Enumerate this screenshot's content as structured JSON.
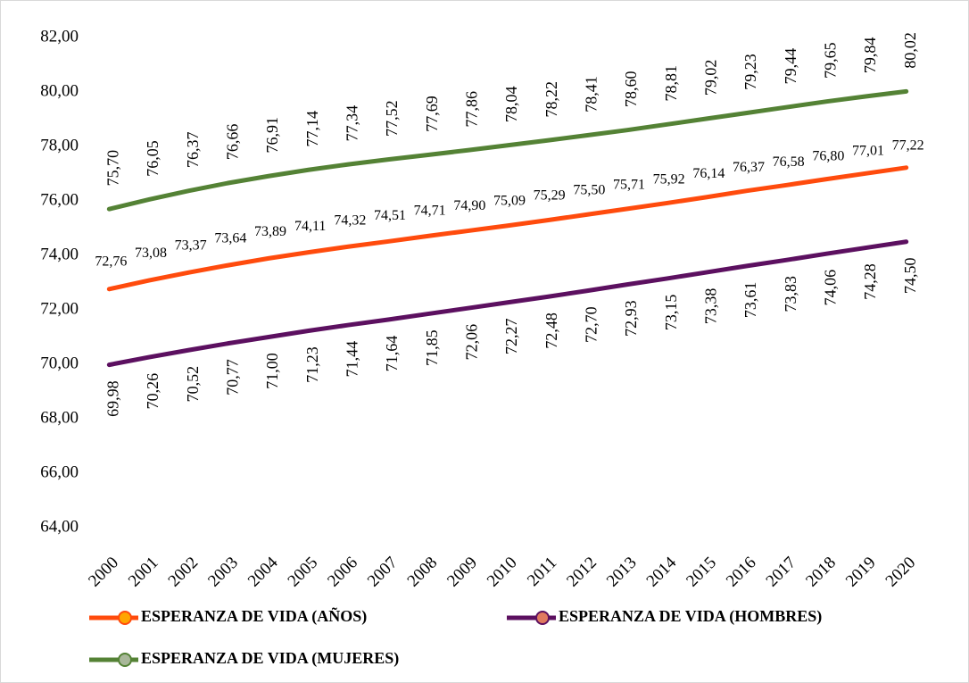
{
  "chart_data": {
    "type": "line",
    "categories": [
      "2000",
      "2001",
      "2002",
      "2003",
      "2004",
      "2005",
      "2006",
      "2007",
      "2008",
      "2009",
      "2010",
      "2011",
      "2012",
      "2013",
      "2014",
      "2015",
      "2016",
      "2017",
      "2018",
      "2019",
      "2020"
    ],
    "series": [
      {
        "name": "ESPERANZA DE VIDA (AÑOS)",
        "color": "#ff4b0d",
        "values": [
          72.76,
          73.08,
          73.37,
          73.64,
          73.89,
          74.11,
          74.32,
          74.51,
          74.71,
          74.9,
          75.09,
          75.29,
          75.5,
          75.71,
          75.92,
          76.14,
          76.37,
          76.58,
          76.8,
          77.01,
          77.22
        ],
        "value_labels": [
          "72,76",
          "73,08",
          "73,37",
          "73,64",
          "73,89",
          "74,11",
          "74,32",
          "74,51",
          "74,71",
          "74,90",
          "75,09",
          "75,29",
          "75,50",
          "75,71",
          "75,92",
          "76,14",
          "76,37",
          "76,58",
          "76,80",
          "77,01",
          "77,22"
        ]
      },
      {
        "name": "ESPERANZA DE VIDA (HOMBRES)",
        "color": "#5c1060",
        "values": [
          69.98,
          70.26,
          70.52,
          70.77,
          71.0,
          71.23,
          71.44,
          71.64,
          71.85,
          72.06,
          72.27,
          72.48,
          72.7,
          72.93,
          73.15,
          73.38,
          73.61,
          73.83,
          74.06,
          74.28,
          74.5
        ],
        "value_labels": [
          "69,98",
          "70,26",
          "70,52",
          "70,77",
          "71,00",
          "71,23",
          "71,44",
          "71,64",
          "71,85",
          "72,06",
          "72,27",
          "72,48",
          "72,70",
          "72,93",
          "73,15",
          "73,38",
          "73,61",
          "73,83",
          "74,06",
          "74,28",
          "74,50"
        ]
      },
      {
        "name": "ESPERANZA DE VIDA (MUJERES)",
        "color": "#548235",
        "values": [
          75.7,
          76.05,
          76.37,
          76.66,
          76.91,
          77.14,
          77.34,
          77.52,
          77.69,
          77.86,
          78.04,
          78.22,
          78.41,
          78.6,
          78.81,
          79.02,
          79.23,
          79.44,
          79.65,
          79.84,
          80.02
        ],
        "value_labels": [
          "75,70",
          "76,05",
          "76,37",
          "76,66",
          "76,91",
          "77,14",
          "77,34",
          "77,52",
          "77,69",
          "77,86",
          "78,04",
          "78,22",
          "78,41",
          "78,60",
          "78,81",
          "79,02",
          "79,23",
          "79,44",
          "79,65",
          "79,84",
          "80,02"
        ]
      }
    ],
    "ylim": [
      63,
      82.5
    ],
    "yticks": [
      {
        "value": 64,
        "label": "64,00"
      },
      {
        "value": 66,
        "label": "66,00"
      },
      {
        "value": 68,
        "label": "68,00"
      },
      {
        "value": 70,
        "label": "70,00"
      },
      {
        "value": 72,
        "label": "72,00"
      },
      {
        "value": 74,
        "label": "74,00"
      },
      {
        "value": 76,
        "label": "76,00"
      },
      {
        "value": 78,
        "label": "78,00"
      },
      {
        "value": 80,
        "label": "80,00"
      },
      {
        "value": 82,
        "label": "82,00"
      }
    ],
    "grid": false
  }
}
